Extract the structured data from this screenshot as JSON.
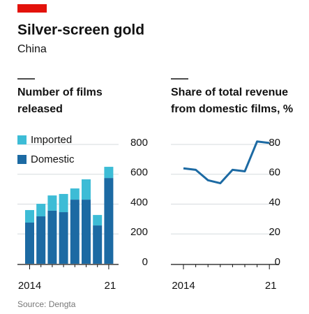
{
  "header": {
    "title": "Silver-screen gold",
    "subtitle": "China",
    "source": "Source: Dengta"
  },
  "chart_data": [
    {
      "type": "stacked-bar",
      "title": [
        "Number of films",
        "released"
      ],
      "categories": [
        "2014",
        null,
        null,
        null,
        null,
        null,
        null,
        "21"
      ],
      "series": [
        {
          "name": "Domestic",
          "color": "#1c6aa3",
          "values": [
            276,
            318,
            356,
            346,
            430,
            430,
            257,
            575
          ]
        },
        {
          "name": "Imported",
          "color": "#3dbcd6",
          "values": [
            84,
            84,
            102,
            122,
            75,
            136,
            70,
            75
          ]
        }
      ],
      "ylim": [
        0,
        800
      ],
      "yticks": [
        0,
        200,
        400,
        600,
        800
      ],
      "grid": true
    },
    {
      "type": "line",
      "title": [
        "Share of total revenue",
        "from domestic films, %"
      ],
      "categories": [
        "2014",
        null,
        null,
        null,
        null,
        null,
        null,
        "21"
      ],
      "series": [
        {
          "name": "Share",
          "color": "#1c6aa3",
          "values": [
            64,
            63,
            56,
            54,
            63,
            62,
            82,
            81
          ]
        }
      ],
      "ylim": [
        0,
        80
      ],
      "yticks": [
        0,
        20,
        40,
        60,
        80
      ],
      "grid": true
    }
  ]
}
